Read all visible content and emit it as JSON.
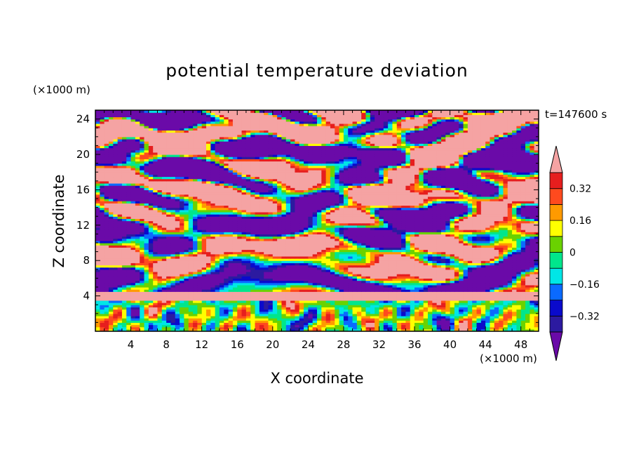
{
  "chart_data": {
    "type": "heatmap",
    "title": "potential temperature deviation",
    "xlabel": "X coordinate",
    "ylabel": "Z coordinate",
    "x_unit": "(×1000 m)",
    "y_unit": "(×1000 m)",
    "time_label": "t=147600 s",
    "xlim": [
      0,
      50
    ],
    "ylim": [
      0,
      25
    ],
    "x_ticks": [
      4,
      8,
      12,
      16,
      20,
      24,
      28,
      32,
      36,
      40,
      44,
      48
    ],
    "y_ticks": [
      4,
      8,
      12,
      16,
      20,
      24
    ],
    "colorbar": {
      "levels": [
        -0.4,
        -0.32,
        -0.24,
        -0.16,
        -0.08,
        0,
        0.08,
        0.16,
        0.24,
        0.32,
        0.4
      ],
      "tick_values": [
        0.32,
        0.16,
        0,
        -0.16,
        -0.32
      ],
      "tick_labels": [
        "0.32",
        "0.16",
        "0",
        "−0.16",
        "−0.32"
      ],
      "colors": [
        "#6a0aa8",
        "#2c1aa0",
        "#0a0acc",
        "#0a6aff",
        "#00e6e6",
        "#00e68c",
        "#6ad200",
        "#ffff00",
        "#ff9a00",
        "#ff4a1e",
        "#e61e1e",
        "#f5a3a3"
      ],
      "extend": "both"
    },
    "description": "Contour field of potential temperature deviation; purple/pink stratified layers aloft and turbulent multicolor boundary layer below ~4 km."
  }
}
